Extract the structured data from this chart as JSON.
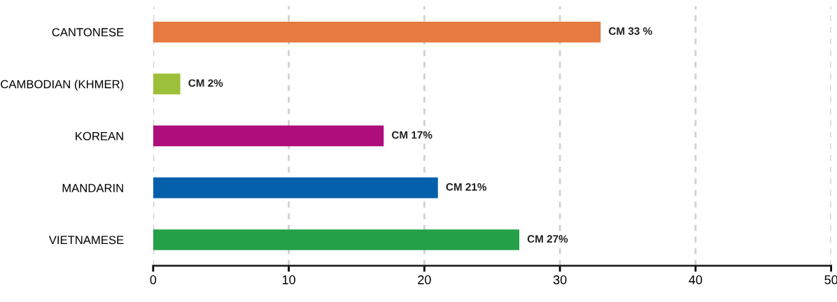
{
  "chart_data": {
    "type": "bar",
    "orientation": "horizontal",
    "categories": [
      "CANTONESE",
      "CAMBODIAN (KHMER)",
      "KOREAN",
      "MANDARIN",
      "VIETNAMESE"
    ],
    "values": [
      33,
      2,
      17,
      21,
      27
    ],
    "colors": [
      "#e67a40",
      "#9dc03a",
      "#ae0e7a",
      "#0560ac",
      "#23a048"
    ],
    "value_labels": [
      "CM 33 %",
      "CM 2%",
      "CM 17%",
      "CM 21%",
      "CM 27%"
    ],
    "xlim": [
      0,
      50
    ],
    "xticks": [
      0,
      10,
      20,
      30,
      40,
      50
    ],
    "grid": "x",
    "legend": false
  }
}
